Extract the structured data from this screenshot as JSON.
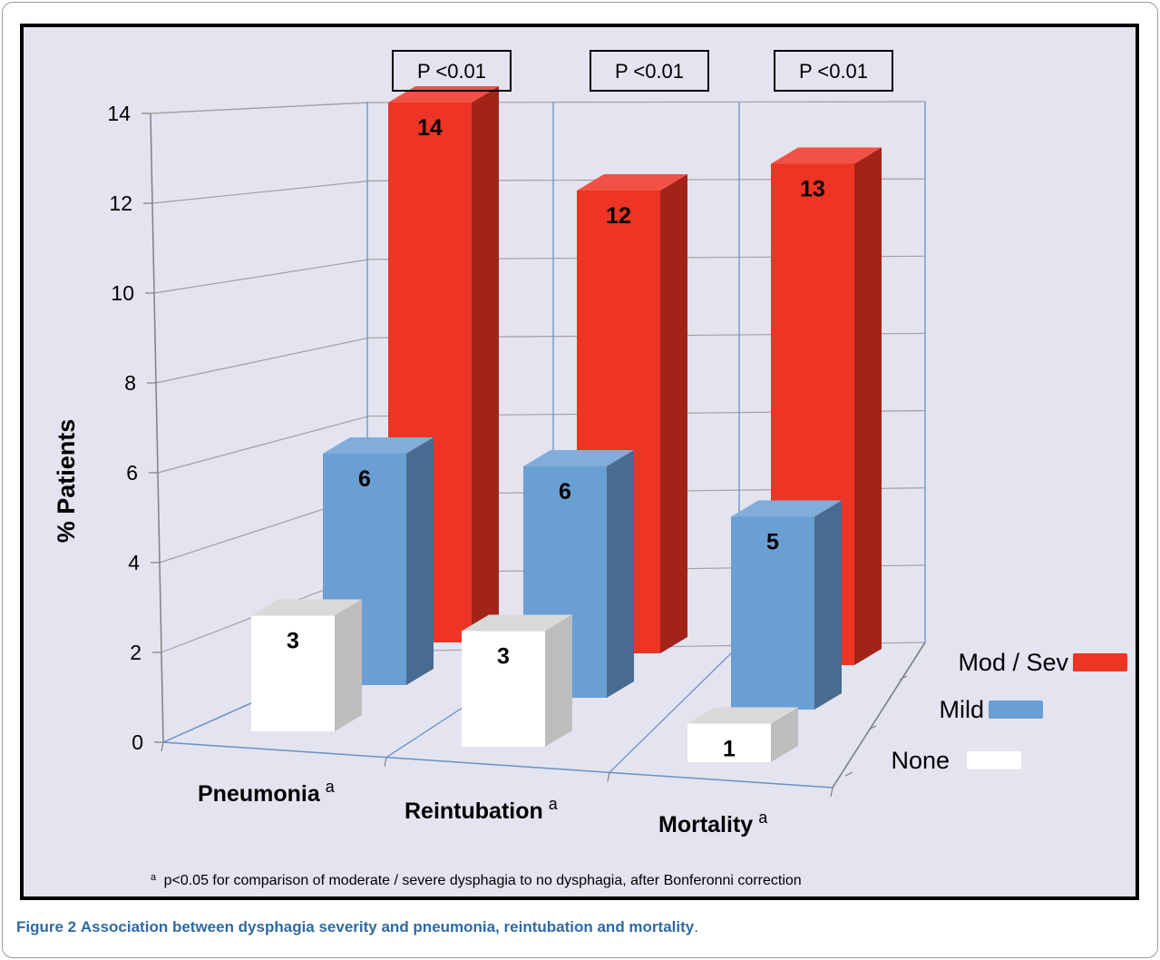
{
  "chart_data": {
    "type": "bar",
    "style": "3d-clustered",
    "categories": [
      "Pneumonia",
      "Reintubation",
      "Mortality"
    ],
    "category_superscripts": [
      "a",
      "a",
      "a"
    ],
    "series": [
      {
        "name": "None",
        "values": [
          3,
          3,
          1
        ],
        "color": "#ffffff"
      },
      {
        "name": "Mild",
        "values": [
          6,
          6,
          5
        ],
        "color": "#6a9fd4"
      },
      {
        "name": "Mod / Sev",
        "values": [
          14,
          12,
          13
        ],
        "color": "#ee3424"
      }
    ],
    "data_labels": [
      [
        "3",
        "3",
        "1"
      ],
      [
        "6",
        "6",
        "5"
      ],
      [
        "14",
        "12",
        "13"
      ]
    ],
    "ylabel": "% Patients",
    "ylim": [
      0,
      14
    ],
    "yticks": [
      "0",
      "2",
      "4",
      "6",
      "8",
      "10",
      "12",
      "14"
    ],
    "grid": true,
    "legend_placement": "right",
    "annotations": [
      "P <0.01",
      "P <0.01",
      "P <0.01"
    ],
    "footnote": "a p<0.05 for comparison of moderate / severe dysphagia to no dysphagia, after Bonferonni correction",
    "footnote_marker": "a",
    "footnote_text": "p<0.05 for comparison of moderate / severe dysphagia to no dysphagia, after Bonferonni correction",
    "background_color": "#e3e4f0",
    "frame_color": "#000000"
  },
  "caption": {
    "label": "Figure 2",
    "title": "Association between dysphagia severity and pneumonia, reintubation and mortality",
    "end": "."
  }
}
